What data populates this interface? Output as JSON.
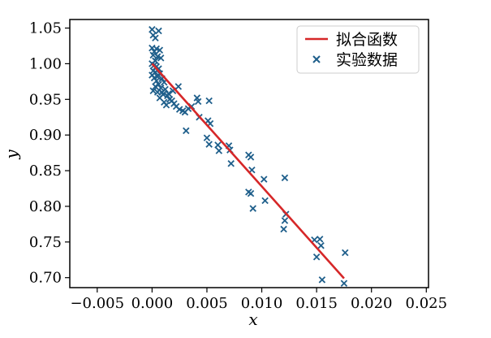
{
  "chart_data": {
    "type": "scatter",
    "title": "",
    "xlabel": "x",
    "ylabel": "y",
    "xlim": [
      -0.0075,
      0.0252
    ],
    "ylim": [
      0.686,
      1.062
    ],
    "x_ticks": [
      -0.005,
      0.0,
      0.005,
      0.01,
      0.015,
      0.02,
      0.025
    ],
    "x_tick_labels": [
      "−0.005",
      "0.000",
      "0.005",
      "0.010",
      "0.015",
      "0.020",
      "0.025"
    ],
    "y_ticks": [
      0.7,
      0.75,
      0.8,
      0.85,
      0.9,
      0.95,
      1.0,
      1.05
    ],
    "y_tick_labels": [
      "0.70",
      "0.75",
      "0.80",
      "0.85",
      "0.90",
      "0.95",
      "1.00",
      "1.05"
    ],
    "grid": false,
    "legend_position": "top-right",
    "series": [
      {
        "name": "拟合函数",
        "kind": "line",
        "color": "#d62728",
        "x": [
          0.0,
          0.0175
        ],
        "y": [
          1.0,
          0.699
        ]
      },
      {
        "name": "实验数据",
        "kind": "scatter",
        "marker": "x",
        "color": "#1f5f8b",
        "points": [
          [
            0.0,
            1.048
          ],
          [
            0.0006,
            1.046
          ],
          [
            0.0001,
            1.04
          ],
          [
            0.0003,
            1.036
          ],
          [
            0.0,
            1.022
          ],
          [
            0.0004,
            1.021
          ],
          [
            0.0007,
            1.019
          ],
          [
            0.0002,
            1.017
          ],
          [
            0.0001,
            1.012
          ],
          [
            0.0005,
            1.01
          ],
          [
            0.0008,
            1.008
          ],
          [
            0.0003,
            1.004
          ],
          [
            0.0,
            1.0
          ],
          [
            0.0002,
            0.998
          ],
          [
            0.0004,
            0.996
          ],
          [
            0.0006,
            0.993
          ],
          [
            0.0001,
            0.99
          ],
          [
            0.0003,
            0.988
          ],
          [
            0.0007,
            0.986
          ],
          [
            0.0,
            0.984
          ],
          [
            0.0005,
            0.982
          ],
          [
            0.0002,
            0.98
          ],
          [
            0.0009,
            0.979
          ],
          [
            0.0004,
            0.976
          ],
          [
            0.0011,
            0.974
          ],
          [
            0.0006,
            0.971
          ],
          [
            0.0003,
            0.968
          ],
          [
            0.0008,
            0.966
          ],
          [
            0.0012,
            0.964
          ],
          [
            0.0001,
            0.962
          ],
          [
            0.0005,
            0.96
          ],
          [
            0.001,
            0.957
          ],
          [
            0.0014,
            0.955
          ],
          [
            0.0007,
            0.952
          ],
          [
            0.0016,
            0.95
          ],
          [
            0.0018,
            0.948
          ],
          [
            0.0011,
            0.946
          ],
          [
            0.002,
            0.944
          ],
          [
            0.0013,
            0.942
          ],
          [
            0.0022,
            0.94
          ],
          [
            0.0025,
            0.936
          ],
          [
            0.0028,
            0.934
          ],
          [
            0.003,
            0.932
          ],
          [
            0.0033,
            0.937
          ],
          [
            0.0036,
            0.94
          ],
          [
            0.0019,
            0.962
          ],
          [
            0.0024,
            0.968
          ],
          [
            0.0015,
            0.958
          ],
          [
            0.0009,
            0.96
          ],
          [
            0.0041,
            0.952
          ],
          [
            0.0042,
            0.947
          ],
          [
            0.0043,
            0.925
          ],
          [
            0.0052,
            0.948
          ],
          [
            0.0051,
            0.92
          ],
          [
            0.0053,
            0.916
          ],
          [
            0.005,
            0.896
          ],
          [
            0.0052,
            0.887
          ],
          [
            0.0031,
            0.906
          ],
          [
            0.006,
            0.886
          ],
          [
            0.0061,
            0.878
          ],
          [
            0.007,
            0.885
          ],
          [
            0.0071,
            0.879
          ],
          [
            0.0072,
            0.86
          ],
          [
            0.0088,
            0.872
          ],
          [
            0.009,
            0.869
          ],
          [
            0.0091,
            0.851
          ],
          [
            0.0088,
            0.82
          ],
          [
            0.009,
            0.818
          ],
          [
            0.0092,
            0.797
          ],
          [
            0.0102,
            0.838
          ],
          [
            0.0103,
            0.808
          ],
          [
            0.0121,
            0.84
          ],
          [
            0.0122,
            0.789
          ],
          [
            0.0121,
            0.78
          ],
          [
            0.012,
            0.768
          ],
          [
            0.0148,
            0.753
          ],
          [
            0.0153,
            0.754
          ],
          [
            0.0154,
            0.745
          ],
          [
            0.015,
            0.729
          ],
          [
            0.0155,
            0.697
          ],
          [
            0.0176,
            0.735
          ],
          [
            0.0175,
            0.692
          ]
        ]
      }
    ]
  }
}
